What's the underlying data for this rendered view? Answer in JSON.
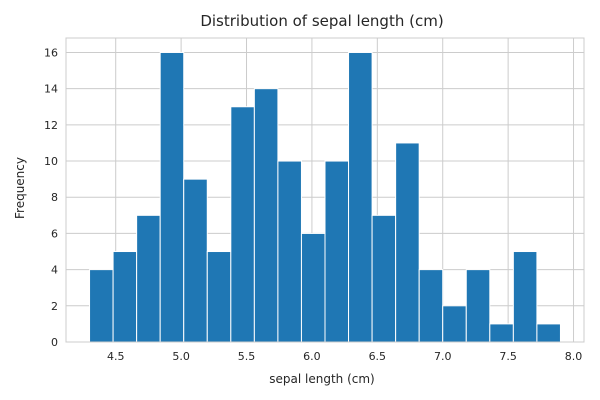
{
  "chart_data": {
    "type": "bar",
    "title": "Distribution of sepal length (cm)",
    "xlabel": "sepal length (cm)",
    "ylabel": "Frequency",
    "bin_edges": [
      4.3,
      4.48,
      4.66,
      4.84,
      5.02,
      5.2,
      5.38,
      5.56,
      5.74,
      5.92,
      6.1,
      6.28,
      6.46,
      6.64,
      6.82,
      7.0,
      7.18,
      7.36,
      7.54,
      7.72,
      7.9
    ],
    "values": [
      4,
      5,
      7,
      16,
      9,
      5,
      13,
      14,
      10,
      6,
      10,
      16,
      7,
      11,
      4,
      2,
      4,
      1,
      5,
      1
    ],
    "xlim": [
      4.12,
      8.08
    ],
    "ylim": [
      0,
      16.8
    ],
    "xticks": [
      4.5,
      5.0,
      5.5,
      6.0,
      6.5,
      7.0,
      7.5,
      8.0
    ],
    "xtick_labels": [
      "4.5",
      "5.0",
      "5.5",
      "6.0",
      "6.5",
      "7.0",
      "7.5",
      "8.0"
    ],
    "yticks": [
      0,
      2,
      4,
      6,
      8,
      10,
      12,
      14,
      16
    ],
    "ytick_labels": [
      "0",
      "2",
      "4",
      "6",
      "8",
      "10",
      "12",
      "14",
      "16"
    ],
    "grid": true,
    "bar_color": "#1f77b4",
    "bar_edge_color": "#ffffff"
  }
}
